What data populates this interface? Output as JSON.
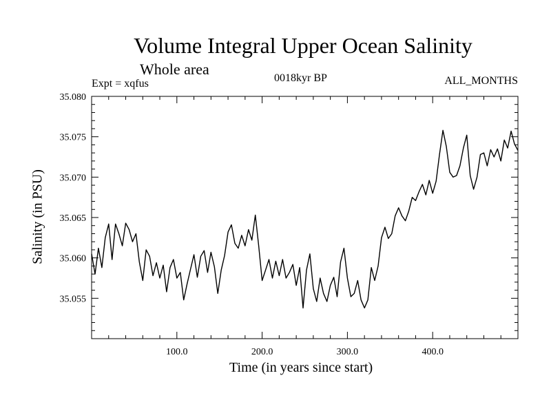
{
  "chart_data": {
    "type": "line",
    "title": "Volume Integral Upper Ocean Salinity",
    "subtitle": "Whole area",
    "expt_label": "Expt = xqfus",
    "period_label": "0018kyr BP",
    "months_label": "ALL_MONTHS",
    "xlabel": "Time (in years since start)",
    "ylabel": "Salinity (in PSU)",
    "xlim": [
      0,
      500
    ],
    "ylim": [
      35.05,
      35.08
    ],
    "x_ticks": [
      100,
      200,
      300,
      400
    ],
    "x_tick_labels": [
      "100.0",
      "200.0",
      "300.0",
      "400.0"
    ],
    "y_ticks": [
      35.055,
      35.06,
      35.065,
      35.07,
      35.075,
      35.08
    ],
    "y_tick_labels": [
      "35.055",
      "35.060",
      "35.065",
      "35.070",
      "35.075",
      "35.080"
    ],
    "series": [
      {
        "name": "salinity",
        "x": [
          0,
          4,
          8,
          12,
          16,
          20,
          24,
          28,
          32,
          36,
          40,
          44,
          48,
          52,
          56,
          60,
          64,
          68,
          72,
          76,
          80,
          84,
          88,
          92,
          96,
          100,
          104,
          108,
          112,
          116,
          120,
          124,
          128,
          132,
          136,
          140,
          144,
          148,
          152,
          156,
          160,
          164,
          168,
          172,
          176,
          180,
          184,
          188,
          192,
          196,
          200,
          204,
          208,
          212,
          216,
          220,
          224,
          228,
          232,
          236,
          240,
          244,
          248,
          252,
          256,
          260,
          264,
          268,
          272,
          276,
          280,
          284,
          288,
          292,
          296,
          300,
          304,
          308,
          312,
          316,
          320,
          324,
          328,
          332,
          336,
          340,
          344,
          348,
          352,
          356,
          360,
          364,
          368,
          372,
          376,
          380,
          384,
          388,
          392,
          396,
          400,
          404,
          408,
          412,
          416,
          420,
          424,
          428,
          432,
          436,
          440,
          444,
          448,
          452,
          456,
          460,
          464,
          468,
          472,
          476,
          480,
          484,
          488,
          492,
          496,
          500
        ],
        "values": [
          35.0605,
          35.058,
          35.0612,
          35.0588,
          35.0625,
          35.0642,
          35.0598,
          35.0642,
          35.063,
          35.0615,
          35.0643,
          35.0635,
          35.062,
          35.063,
          35.0595,
          35.0572,
          35.061,
          35.0602,
          35.0578,
          35.0594,
          35.0575,
          35.0591,
          35.0558,
          35.0588,
          35.0598,
          35.0575,
          35.0582,
          35.0548,
          35.0568,
          35.0586,
          35.0604,
          35.0576,
          35.0602,
          35.0609,
          35.0582,
          35.0607,
          35.0589,
          35.0556,
          35.0585,
          35.0603,
          35.0632,
          35.0641,
          35.0618,
          35.0612,
          35.0628,
          35.0615,
          35.0635,
          35.0622,
          35.0653,
          35.0615,
          35.0572,
          35.0585,
          35.0598,
          35.0575,
          35.0596,
          35.0578,
          35.0598,
          35.0575,
          35.0582,
          35.0592,
          35.0566,
          35.0588,
          35.0538,
          35.0585,
          35.0605,
          35.0562,
          35.0546,
          35.0575,
          35.0556,
          35.0546,
          35.0566,
          35.0576,
          35.0552,
          35.0595,
          35.0612,
          35.0575,
          35.0552,
          35.0556,
          35.0572,
          35.0548,
          35.0538,
          35.0548,
          35.0588,
          35.0572,
          35.059,
          35.0625,
          35.0638,
          35.0624,
          35.063,
          35.0652,
          35.0662,
          35.0652,
          35.0646,
          35.0658,
          35.0675,
          35.0671,
          35.0682,
          35.0691,
          35.0678,
          35.0696,
          35.068,
          35.0695,
          35.0728,
          35.0758,
          35.0738,
          35.0706,
          35.07,
          35.0702,
          35.0714,
          35.0736,
          35.0752,
          35.0702,
          35.0685,
          35.07,
          35.0728,
          35.073,
          35.0714,
          35.0734,
          35.0725,
          35.0735,
          35.072,
          35.0746,
          35.0736,
          35.0757,
          35.0741,
          35.0733
        ]
      }
    ]
  }
}
